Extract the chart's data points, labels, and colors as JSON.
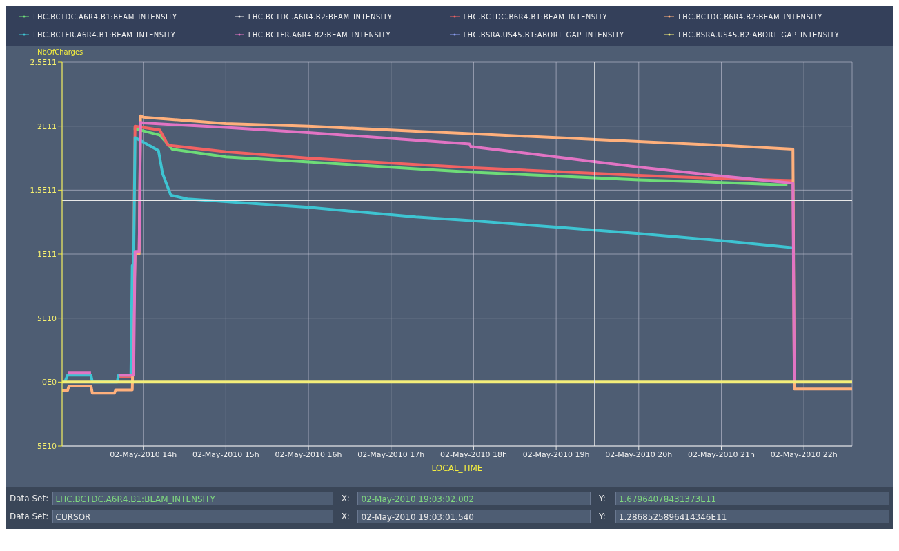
{
  "chart_data": {
    "type": "line",
    "xlabel": "LOCAL_TIME",
    "ylabel": "NbOfCharges",
    "xlim": [
      "2010-05-02T13:01",
      "2010-05-02T22:35"
    ],
    "xticks": [
      {
        "value": "2010-05-02T14:00",
        "label": "02-May-2010 14h"
      },
      {
        "value": "2010-05-02T15:00",
        "label": "02-May-2010 15h"
      },
      {
        "value": "2010-05-02T16:00",
        "label": "02-May-2010 16h"
      },
      {
        "value": "2010-05-02T17:00",
        "label": "02-May-2010 17h"
      },
      {
        "value": "2010-05-02T18:00",
        "label": "02-May-2010 18h"
      },
      {
        "value": "2010-05-02T19:00",
        "label": "02-May-2010 19h"
      },
      {
        "value": "2010-05-02T20:00",
        "label": "02-May-2010 20h"
      },
      {
        "value": "2010-05-02T21:00",
        "label": "02-May-2010 21h"
      },
      {
        "value": "2010-05-02T22:00",
        "label": "02-May-2010 22h"
      }
    ],
    "ylim": [
      -50000000000,
      250000000000
    ],
    "yticks": [
      {
        "value": -50000000000,
        "label": "-5E10"
      },
      {
        "value": 0,
        "label": "0E0"
      },
      {
        "value": 50000000000,
        "label": "5E10"
      },
      {
        "value": 100000000000,
        "label": "1E11"
      },
      {
        "value": 150000000000,
        "label": "1.5E11"
      },
      {
        "value": 200000000000,
        "label": "2E11"
      },
      {
        "value": 250000000000,
        "label": "2.5E11"
      }
    ],
    "grid": true,
    "legend": "top",
    "ref_lines": [
      {
        "axis": "x",
        "value": "2010-05-02T19:28",
        "color": "#e8e8e8"
      },
      {
        "axis": "y",
        "value": 142000000000,
        "color": "#e8e8e8"
      }
    ],
    "series": [
      {
        "name": "LHC.BCTDC.A6R4.B1:BEAM_INTENSITY",
        "color": "#6edc78",
        "x": [
          "2010-05-02T13:53",
          "2010-05-02T13:54",
          "2010-05-02T14:12",
          "2010-05-02T14:21",
          "2010-05-02T15:00",
          "2010-05-02T16:00",
          "2010-05-02T17:18",
          "2010-05-02T18:00",
          "2010-05-02T19:00",
          "2010-05-02T20:00",
          "2010-05-02T21:00",
          "2010-05-02T21:48"
        ],
        "values": [
          198000000000,
          198000000000,
          193000000000,
          182000000000,
          176000000000,
          172000000000,
          166700000000,
          164000000000,
          161000000000,
          158000000000,
          156000000000,
          154000000000
        ]
      },
      {
        "name": "LHC.BCTDC.A6R4.B2:BEAM_INTENSITY",
        "color": "#e8e8e8"
      },
      {
        "name": "LHC.BCTDC.B6R4.B1:BEAM_INTENSITY",
        "color": "#f26262",
        "x": [
          "2010-05-02T13:05",
          "2010-05-02T13:22",
          "2010-05-02T13:23",
          "2010-05-02T13:42",
          "2010-05-02T13:52",
          "2010-05-02T13:53",
          "2010-05-02T13:54",
          "2010-05-02T14:12",
          "2010-05-02T14:18",
          "2010-05-02T15:00",
          "2010-05-02T16:00",
          "2010-05-02T17:18",
          "2010-05-02T18:00",
          "2010-05-02T19:00",
          "2010-05-02T20:00",
          "2010-05-02T21:00",
          "2010-05-02T21:52"
        ],
        "values": [
          6000000000,
          6000000000,
          null,
          4500000000,
          4500000000,
          100000000000,
          200000000000,
          197000000000,
          185000000000,
          180000000000,
          175000000000,
          170000000000,
          167500000000,
          164500000000,
          161500000000,
          159000000000,
          157500000000
        ]
      },
      {
        "name": "LHC.BCTDC.B6R4.B2:BEAM_INTENSITY",
        "color": "#ffb07c",
        "x": [
          "2010-05-02T13:01",
          "2010-05-02T13:05",
          "2010-05-02T13:06",
          "2010-05-02T13:22",
          "2010-05-02T13:23",
          "2010-05-02T13:39",
          "2010-05-02T13:40",
          "2010-05-02T13:52",
          "2010-05-02T13:54",
          "2010-05-02T13:57",
          "2010-05-02T13:58",
          "2010-05-02T14:00",
          "2010-05-02T15:00",
          "2010-05-02T16:00",
          "2010-05-02T17:18",
          "2010-05-02T18:00",
          "2010-05-02T19:00",
          "2010-05-02T20:00",
          "2010-05-02T21:00",
          "2010-05-02T21:52",
          "2010-05-02T21:53",
          "2010-05-02T22:35"
        ],
        "values": [
          -6500000000,
          -6500000000,
          -3000000000,
          -3000000000,
          -8600000000,
          -8600000000,
          -6000000000,
          -6000000000,
          100000000000,
          100000000000,
          208000000000,
          207000000000,
          202000000000,
          200000000000,
          196000000000,
          194000000000,
          191000000000,
          188000000000,
          185000000000,
          182000000000,
          -5400000000,
          -5400000000
        ]
      },
      {
        "name": "LHC.BCTFR.A6R4.B1:BEAM_INTENSITY",
        "color": "#3ec4d2",
        "x": [
          "2010-05-02T13:03",
          "2010-05-02T13:05",
          "2010-05-02T13:22",
          "2010-05-02T13:23",
          "2010-05-02T13:41",
          "2010-05-02T13:42",
          "2010-05-02T13:51",
          "2010-05-02T13:52",
          "2010-05-02T13:53",
          "2010-05-02T13:54",
          "2010-05-02T14:11",
          "2010-05-02T14:14",
          "2010-05-02T14:20",
          "2010-05-02T14:32",
          "2010-05-02T15:00",
          "2010-05-02T16:00",
          "2010-05-02T17:18",
          "2010-05-02T18:00",
          "2010-05-02T19:00",
          "2010-05-02T20:00",
          "2010-05-02T21:00",
          "2010-05-02T21:52"
        ],
        "values": [
          0,
          5400000000,
          5400000000,
          0,
          0,
          5400000000,
          5400000000,
          91000000000,
          92000000000,
          191000000000,
          181000000000,
          163000000000,
          146000000000,
          143000000000,
          141000000000,
          136500000000,
          129000000000,
          126000000000,
          121000000000,
          116000000000,
          110500000000,
          105000000000
        ]
      },
      {
        "name": "LHC.BCTFR.A6R4.B2:BEAM_INTENSITY",
        "color": "#e274c4",
        "x": [
          "2010-05-02T13:05",
          "2010-05-02T13:22",
          "2010-05-02T13:23",
          "2010-05-02T13:42",
          "2010-05-02T13:53",
          "2010-05-02T13:54",
          "2010-05-02T13:57",
          "2010-05-02T13:58",
          "2010-05-02T14:00",
          "2010-05-02T15:00",
          "2010-05-02T16:00",
          "2010-05-02T17:18",
          "2010-05-02T17:57",
          "2010-05-02T17:58",
          "2010-05-02T19:00",
          "2010-05-02T20:00",
          "2010-05-02T21:00",
          "2010-05-02T21:52",
          "2010-05-02T21:53"
        ],
        "values": [
          7000000000,
          7000000000,
          null,
          5500000000,
          5500000000,
          102000000000,
          102000000000,
          203000000000,
          202500000000,
          199000000000,
          195000000000,
          189000000000,
          186000000000,
          184000000000,
          176000000000,
          168000000000,
          161000000000,
          155500000000,
          0
        ]
      },
      {
        "name": "LHC.BSRA.US45.B1:ABORT_GAP_INTENSITY",
        "color": "#8a9cf0"
      },
      {
        "name": "LHC.BSRA.US45.B2:ABORT_GAP_INTENSITY",
        "color": "#f4ee7a",
        "x": [
          "2010-05-02T13:01",
          "2010-05-02T22:35"
        ],
        "values": [
          0,
          0
        ]
      }
    ],
    "annotations": [
      "Data Set:",
      "LHC.BCTDC.A6R4.B1:BEAM_INTENSITY",
      "X:",
      "02-May-2010 19:03:02.002",
      "Y:",
      "1.67964078431373E11",
      "Data Set:",
      "CURSOR",
      "X:",
      "02-May-2010 19:03:01.540",
      "Y:",
      "1.2868525896414346E11"
    ]
  }
}
